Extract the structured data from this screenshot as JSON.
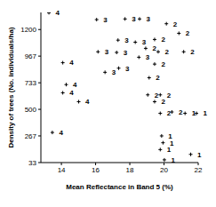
{
  "chart_data": {
    "type": "scatter",
    "xlabel": "Mean Reflectance in Band 5 (%)",
    "ylabel": "Density of trees (No. individuals/ha)",
    "xlim": [
      12.8,
      22
    ],
    "xticks": [
      14,
      16,
      18,
      20,
      22
    ],
    "ylim": [
      33,
      1350
    ],
    "yticks": [
      33,
      267,
      500,
      733,
      967,
      1200
    ],
    "grid": false,
    "marker": "plus",
    "data_labels": true,
    "color": "#000000",
    "series": [
      {
        "name": "4",
        "x": [
          13.27,
          14.08,
          14.28,
          14.08,
          15.01,
          13.47
        ],
        "values": [
          1347,
          909,
          717,
          645,
          567,
          297
        ]
      },
      {
        "name": "3",
        "x": [
          16.06,
          17.72,
          18.57,
          17.31,
          18.32,
          16.14,
          17.23,
          18.53,
          17.35,
          16.55
        ],
        "values": [
          1287,
          1293,
          1293,
          1107,
          1089,
          1005,
          999,
          957,
          861,
          825
        ]
      },
      {
        "name": "2",
        "x": [
          20.14,
          20.87,
          19.45,
          18.93,
          19.66,
          21.15,
          19.45,
          19.13,
          19.05,
          19.78,
          19.45,
          19.78,
          20.46
        ],
        "values": [
          1251,
          1167,
          1113,
          1035,
          1005,
          1005,
          897,
          777,
          627,
          627,
          567,
          465,
          477
        ]
      },
      {
        "name": "1",
        "x": [
          21.23,
          21.9,
          19.86,
          19.94,
          19.78,
          20.02,
          21.56
        ],
        "values": [
          465,
          465,
          267,
          207,
          147,
          57,
          105
        ]
      }
    ]
  }
}
